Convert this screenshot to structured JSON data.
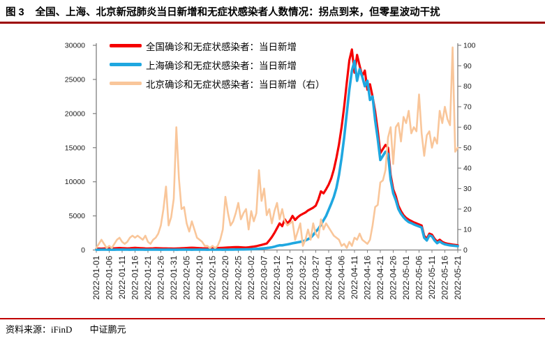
{
  "title": {
    "prefix": "图 3",
    "text": "全国、上海、北京新冠肺炎当日新增和无症状感染者人数情况：拐点到来，但零星波动干扰"
  },
  "footer": {
    "source": "资料来源：iFinD",
    "org": "中证鹏元"
  },
  "colors": {
    "national": "#f50000",
    "shanghai": "#1fa7e0",
    "beijing": "#f9c69a",
    "title_rule": "#9c0000",
    "footer_rule": "#c00000",
    "axis": "#7f7f7f",
    "label": "#1a1a1a"
  },
  "chart_data": {
    "type": "line",
    "title": "全国、上海、北京新冠肺炎当日新增和无症状感染者人数情况",
    "xlabel": "",
    "ylabel_left": "",
    "ylabel_right": "",
    "grid": false,
    "legend_position": "top-left-inside",
    "left_axis": {
      "min": 0,
      "max": 30000,
      "ticks": [
        0,
        5000,
        10000,
        15000,
        20000,
        25000,
        30000
      ]
    },
    "right_axis": {
      "min": 0,
      "max": 100,
      "ticks": [
        0,
        10,
        20,
        30,
        40,
        50,
        60,
        70,
        80,
        90,
        100
      ]
    },
    "x_tick_every": 5,
    "x_tick_labels": [
      "2022-01-01",
      "2022-01-06",
      "2022-01-11",
      "2022-01-16",
      "2022-01-21",
      "2022-01-26",
      "2022-01-31",
      "2022-02-05",
      "2022-02-10",
      "2022-02-15",
      "2022-02-20",
      "2022-02-25",
      "2022-03-02",
      "2022-03-07",
      "2022-03-12",
      "2022-03-17",
      "2022-03-22",
      "2022-03-27",
      "2022-04-01",
      "2022-04-06",
      "2022-04-11",
      "2022-04-16",
      "2022-04-21",
      "2022-04-26",
      "2022-05-01",
      "2022-05-06",
      "2022-05-11",
      "2022-05-16",
      "2022-05-21"
    ],
    "series": [
      {
        "name": "全国确诊和无症状感染者：当日新增",
        "axis": "left",
        "color": "#f50000",
        "width": 3.2,
        "values": [
          180,
          200,
          190,
          220,
          250,
          230,
          210,
          250,
          280,
          300,
          280,
          260,
          240,
          260,
          300,
          320,
          300,
          280,
          260,
          240,
          220,
          230,
          250,
          270,
          260,
          250,
          240,
          230,
          220,
          210,
          200,
          220,
          240,
          260,
          280,
          300,
          320,
          340,
          320,
          300,
          280,
          260,
          250,
          240,
          230,
          250,
          270,
          290,
          310,
          330,
          350,
          370,
          390,
          410,
          430,
          420,
          400,
          380,
          360,
          400,
          450,
          500,
          560,
          650,
          750,
          850,
          950,
          1400,
          1900,
          2500,
          3200,
          3900,
          3500,
          4500,
          3900,
          4300,
          5000,
          4400,
          4800,
          5100,
          5300,
          5500,
          5800,
          6000,
          6200,
          6500,
          7400,
          8600,
          8300,
          8900,
          9600,
          10500,
          11800,
          13500,
          15500,
          18000,
          21000,
          24500,
          27800,
          29400,
          26000,
          28600,
          27000,
          25500,
          26300,
          23500,
          24300,
          22500,
          20300,
          17500,
          14200,
          14800,
          15400,
          15000,
          11000,
          8900,
          7900,
          6500,
          5700,
          5100,
          4700,
          4450,
          4250,
          4050,
          3900,
          3750,
          3600,
          2100,
          1650,
          2400,
          2250,
          1650,
          1250,
          1500,
          1200,
          1020,
          930,
          860,
          800,
          750,
          700
        ]
      },
      {
        "name": "上海确诊和无症状感染者：当日新增",
        "axis": "left",
        "color": "#1fa7e0",
        "width": 3.6,
        "values": [
          40,
          45,
          50,
          55,
          50,
          45,
          40,
          45,
          50,
          55,
          60,
          55,
          50,
          45,
          50,
          55,
          60,
          55,
          50,
          45,
          50,
          55,
          60,
          55,
          50,
          45,
          50,
          55,
          60,
          55,
          50,
          45,
          50,
          55,
          60,
          55,
          50,
          45,
          50,
          55,
          60,
          55,
          50,
          45,
          50,
          55,
          60,
          55,
          50,
          45,
          50,
          55,
          60,
          65,
          70,
          75,
          80,
          85,
          90,
          100,
          120,
          140,
          160,
          180,
          210,
          250,
          290,
          340,
          400,
          480,
          600,
          700,
          680,
          760,
          820,
          900,
          980,
          1050,
          1120,
          1200,
          1280,
          1400,
          1580,
          1800,
          2200,
          2700,
          3100,
          3700,
          4350,
          5000,
          5900,
          6800,
          7800,
          9100,
          11000,
          13500,
          16500,
          20000,
          23500,
          26300,
          27700,
          24800,
          26500,
          25400,
          24000,
          24800,
          22000,
          22500,
          19000,
          16300,
          13200,
          13800,
          14400,
          14100,
          10300,
          8300,
          7300,
          6000,
          5300,
          4800,
          4400,
          4100,
          3950,
          3750,
          3600,
          3450,
          3300,
          1800,
          1400,
          2150,
          2000,
          1400,
          1000,
          1250,
          1000,
          830,
          760,
          680,
          640,
          600,
          560
        ]
      },
      {
        "name": "北京确诊和无症状感染者：当日新增（右）",
        "axis": "right",
        "color": "#f9c69a",
        "width": 2.6,
        "values": [
          1,
          3,
          5,
          3,
          1,
          2,
          1,
          3,
          5,
          6,
          4,
          3,
          4,
          6,
          7,
          6,
          7,
          6,
          5,
          7,
          4,
          3,
          5,
          6,
          8,
          12,
          20,
          31,
          12,
          16,
          25,
          60,
          35,
          20,
          21,
          13,
          9,
          14,
          10,
          6,
          5,
          4,
          2,
          2,
          1,
          2,
          1,
          2,
          5,
          10,
          26,
          18,
          12,
          14,
          18,
          23,
          15,
          18,
          20,
          10,
          19,
          14,
          18,
          39,
          24,
          30,
          17,
          20,
          13,
          19,
          23,
          15,
          20,
          14,
          12,
          13,
          14,
          5,
          9,
          13,
          2,
          5,
          10,
          5,
          13,
          8,
          6,
          15,
          10,
          13,
          11,
          9,
          7,
          6,
          5,
          2,
          3,
          1,
          4,
          2,
          6,
          5,
          8,
          5,
          4,
          3,
          5,
          12,
          21,
          22,
          33,
          34,
          39,
          55,
          60,
          42,
          60,
          62,
          53,
          65,
          62,
          68,
          57,
          60,
          58,
          76,
          57,
          46,
          56,
          58,
          50,
          55,
          52,
          68,
          62,
          70,
          64,
          61,
          99,
          48,
          50
        ]
      }
    ]
  }
}
